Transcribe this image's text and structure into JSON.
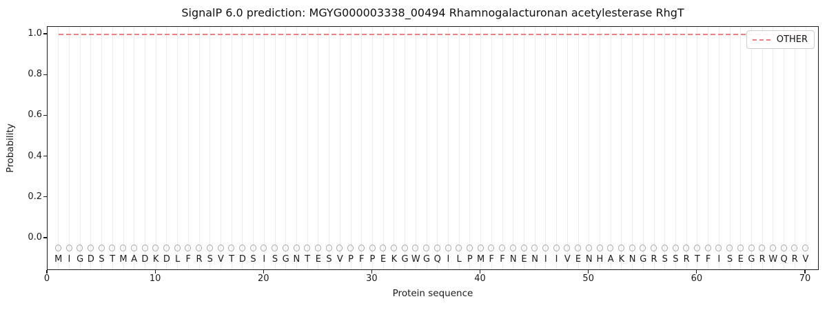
{
  "figure": {
    "title": "SignalP 6.0 prediction: MGYG000003338_00494 Rhamnogalacturonan acetylesterase RhgT",
    "xlabel": "Protein sequence",
    "ylabel": "Probability"
  },
  "legend": {
    "label": "OTHER"
  },
  "axes": {
    "xticks": [
      "0",
      "10",
      "20",
      "30",
      "40",
      "50",
      "60",
      "70"
    ],
    "yticks": [
      "0.0",
      "0.2",
      "0.4",
      "0.6",
      "0.8",
      "1.0"
    ]
  },
  "sequence": "MIGDSTMADKDLFRSVTDSISGNTESVPFPEKGWGQILPMFFNENIIVENHAKNGRSSRTFISEGRWQRV",
  "colors": {
    "other_line": "#f08080",
    "marker_edge": "#a8a8a8",
    "gridline": "#ececec",
    "spine": "#1a1a1a",
    "text": "#1a1a1a",
    "legend_border": "#cccccc"
  },
  "chart_data": {
    "type": "line",
    "title": "SignalP 6.0 prediction: MGYG000003338_00494 Rhamnogalacturonan acetylesterase RhgT",
    "xlabel": "Protein sequence",
    "ylabel": "Probability",
    "xlim": [
      0,
      71.3
    ],
    "ylim": [
      -0.16,
      1.04
    ],
    "xticks": [
      0,
      10,
      20,
      30,
      40,
      50,
      60,
      70
    ],
    "yticks": [
      0.0,
      0.2,
      0.4,
      0.6,
      0.8,
      1.0
    ],
    "grid": "light vertical gridline at every residue position 1-70",
    "legend_position": "upper right",
    "series": [
      {
        "name": "OTHER",
        "linestyle": "dashed",
        "color": "#f08080",
        "x_start": 1,
        "x_end": 70,
        "constant_y": 1.0,
        "description": "OTHER probability equals 1.0 at every residue position 1 through 70"
      }
    ],
    "residue_markers": {
      "marker": "open-circle",
      "edgecolor": "#a8a8a8",
      "facecolor": "none",
      "y": -0.05,
      "x_start": 1,
      "x_end": 70
    },
    "sequence": "MIGDSTMADKDLFRSVTDSISGNTESVPFPEKGWGQILPMFFNENIIVENHAKNGRSSRTFISEGRWQRV",
    "sequence_length": 70
  }
}
